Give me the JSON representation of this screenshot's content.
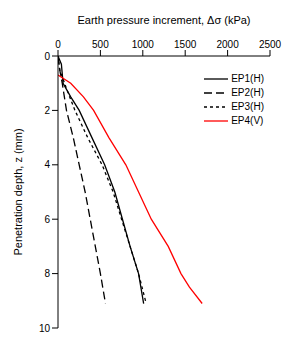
{
  "chart_data": {
    "type": "line",
    "x_label": "Earth pressure increment, Δσ (kPa)",
    "y_label": "Penetration depth, z (mm)",
    "xlim": [
      0,
      2500
    ],
    "xticks": [
      0,
      500,
      1000,
      1500,
      2000,
      2500
    ],
    "ylim": [
      0,
      10
    ],
    "yticks": [
      0,
      2,
      4,
      6,
      8,
      10
    ],
    "grid": false,
    "legend": "upper right",
    "series": [
      {
        "name": "EP1(H)",
        "color": "#000000",
        "line_style": "solid",
        "x": [
          0,
          40,
          60,
          150,
          250,
          400,
          550,
          670,
          760,
          850,
          950,
          1010
        ],
        "y": [
          0,
          0.3,
          1,
          1.5,
          2,
          3,
          4,
          5,
          6,
          7,
          8,
          9.1
        ]
      },
      {
        "name": "EP2(H)",
        "color": "#000000",
        "line_style": "dashed",
        "x": [
          0,
          20,
          50,
          100,
          180,
          250,
          320,
          380,
          440,
          500,
          560
        ],
        "y": [
          0,
          0.5,
          1,
          2,
          3,
          4,
          5,
          6,
          7,
          8,
          9.1
        ]
      },
      {
        "name": "EP3(H)",
        "color": "#000000",
        "line_style": "dotted",
        "x": [
          0,
          20,
          100,
          200,
          350,
          520,
          650,
          750,
          850,
          950,
          1040
        ],
        "y": [
          0,
          0.5,
          1.2,
          2,
          3,
          4,
          5,
          6,
          7,
          8,
          9.1
        ]
      },
      {
        "name": "EP4(V)",
        "color": "#ff0000",
        "line_style": "solid",
        "x": [
          0,
          150,
          300,
          420,
          600,
          800,
          950,
          1100,
          1300,
          1450,
          1550,
          1700
        ],
        "y": [
          0.7,
          1,
          1.5,
          2,
          3,
          4,
          5,
          6,
          7,
          8,
          8.5,
          9.1
        ]
      }
    ]
  }
}
